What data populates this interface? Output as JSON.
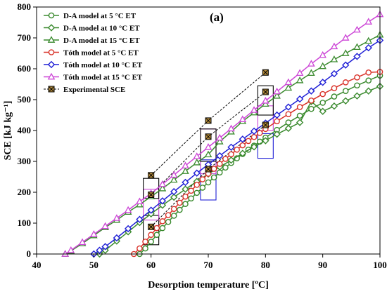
{
  "chart_data": {
    "type": "line",
    "panel_label": "(a)",
    "xlabel": "Desorption temperature [ºC]",
    "ylabel": "SCE [kJ kg⁻¹]",
    "xlim": [
      40,
      100
    ],
    "ylim": [
      0,
      800
    ],
    "xticks": [
      40,
      50,
      60,
      70,
      80,
      90,
      100
    ],
    "yticks": [
      0,
      100,
      200,
      300,
      400,
      500,
      600,
      700,
      800
    ],
    "grid": false,
    "legend_position": "top-left",
    "series": [
      {
        "name": "D-A model at 5 °C ET",
        "color": "#3a8a2e",
        "marker": "circle",
        "x": [
          58,
          59,
          60,
          61,
          62,
          63,
          64,
          65,
          66,
          67,
          68,
          69,
          70,
          71,
          72,
          73,
          74,
          75,
          76,
          77,
          78,
          79,
          80,
          82,
          84,
          86,
          88,
          90,
          92,
          94,
          96,
          98,
          100
        ],
        "y": [
          0,
          18,
          40,
          62,
          84,
          104,
          124,
          143,
          162,
          180,
          198,
          215,
          232,
          248,
          264,
          280,
          295,
          310,
          324,
          338,
          351,
          364,
          377,
          402,
          426,
          448,
          470,
          490,
          510,
          528,
          546,
          562,
          578
        ]
      },
      {
        "name": "D-A model at 10 °C ET",
        "color": "#3a8a2e",
        "marker": "diamond",
        "x": [
          51,
          52,
          54,
          56,
          58,
          60,
          62,
          64,
          66,
          68,
          70,
          72,
          74,
          76,
          78,
          80,
          82,
          84,
          86,
          88,
          90,
          92,
          94,
          96,
          98,
          100
        ],
        "y": [
          0,
          12,
          42,
          72,
          102,
          130,
          158,
          184,
          210,
          235,
          259,
          282,
          304,
          326,
          347,
          367,
          388,
          407,
          426,
          494,
          462,
          479,
          496,
          512,
          528,
          543
        ]
      },
      {
        "name": "D-A model at 15 °C ET",
        "color": "#3a8a2e",
        "marker": "triangle",
        "x": [
          45,
          46,
          48,
          50,
          52,
          54,
          56,
          58,
          60,
          62,
          64,
          66,
          68,
          70,
          72,
          74,
          76,
          78,
          80,
          82,
          84,
          86,
          88,
          90,
          92,
          94,
          96,
          98,
          100
        ],
        "y": [
          0,
          10,
          34,
          60,
          86,
          110,
          136,
          160,
          186,
          212,
          240,
          268,
          296,
          322,
          364,
          396,
          430,
          458,
          486,
          512,
          538,
          562,
          586,
          608,
          630,
          650,
          670,
          690,
          710
        ]
      },
      {
        "name": "Tóth model at 5 °C ET",
        "color": "#d9342b",
        "marker": "circle",
        "x": [
          57,
          58,
          59,
          60,
          61,
          62,
          63,
          64,
          65,
          66,
          67,
          68,
          69,
          70,
          71,
          72,
          73,
          74,
          75,
          76,
          77,
          78,
          79,
          80,
          82,
          84,
          86,
          88,
          90,
          92,
          94,
          96,
          98,
          100
        ],
        "y": [
          0,
          18,
          40,
          62,
          84,
          106,
          126,
          146,
          166,
          186,
          205,
          224,
          242,
          260,
          276,
          292,
          308,
          323,
          338,
          352,
          366,
          379,
          392,
          405,
          430,
          453,
          476,
          497,
          518,
          537,
          556,
          572,
          588,
          590
        ]
      },
      {
        "name": "Tóth model at 10 °C ET",
        "color": "#1f1fd6",
        "marker": "diamond",
        "x": [
          50,
          51,
          52,
          54,
          56,
          58,
          60,
          62,
          64,
          66,
          68,
          70,
          72,
          74,
          76,
          78,
          80,
          82,
          84,
          86,
          88,
          90,
          92,
          94,
          96,
          98,
          100
        ],
        "y": [
          0,
          12,
          24,
          52,
          82,
          112,
          142,
          172,
          202,
          232,
          262,
          290,
          318,
          346,
          372,
          398,
          424,
          450,
          476,
          502,
          528,
          556,
          584,
          612,
          640,
          668,
          692
        ]
      },
      {
        "name": "Tóth model at 15 °C ET",
        "color": "#cc44d6",
        "marker": "triangle",
        "x": [
          45,
          46,
          48,
          50,
          52,
          54,
          56,
          58,
          60,
          62,
          64,
          66,
          68,
          70,
          72,
          74,
          76,
          78,
          80,
          82,
          84,
          86,
          88,
          90,
          92,
          94,
          96,
          98,
          100
        ],
        "y": [
          0,
          12,
          38,
          64,
          90,
          116,
          142,
          170,
          196,
          226,
          256,
          286,
          316,
          346,
          376,
          406,
          436,
          466,
          496,
          526,
          556,
          586,
          616,
          644,
          672,
          700,
          726,
          752,
          776
        ]
      }
    ],
    "experimental": {
      "name": "Experimental SCE",
      "color": "#000000",
      "fill": "#b58b3a",
      "marker": "square-x",
      "points": [
        [
          60,
          88
        ],
        [
          60,
          192
        ],
        [
          60,
          255
        ],
        [
          70,
          275
        ],
        [
          70,
          380
        ],
        [
          70,
          432
        ],
        [
          80,
          418
        ],
        [
          80,
          525
        ],
        [
          80,
          588
        ]
      ]
    }
  }
}
